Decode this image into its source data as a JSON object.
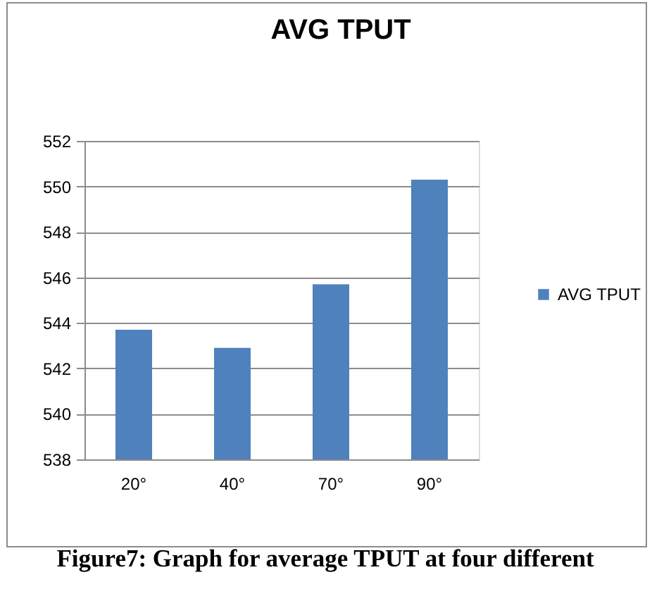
{
  "chart_data": {
    "type": "bar",
    "title": "AVG TPUT",
    "categories": [
      "20°",
      "40°",
      "70°",
      "90°"
    ],
    "series": [
      {
        "name": "AVG TPUT",
        "color": "#4f81bd",
        "values": [
          543.7,
          542.9,
          545.7,
          550.3
        ]
      }
    ],
    "ylim": [
      538,
      552
    ],
    "yticks": [
      538,
      540,
      542,
      544,
      546,
      548,
      550,
      552
    ],
    "grid": "y",
    "legend": "right",
    "annotations": [
      "Figure7: Graph for average TPUT at four different"
    ]
  }
}
